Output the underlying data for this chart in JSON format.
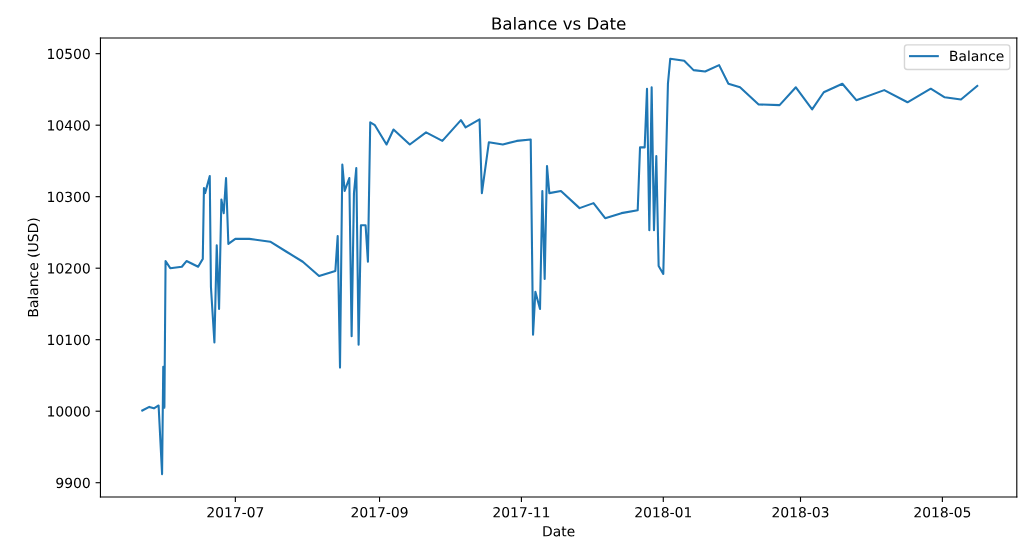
{
  "chart_data": {
    "type": "line",
    "title": "Balance vs Date",
    "xlabel": "Date",
    "ylabel": "Balance (USD)",
    "x": [
      "2017-05-22",
      "2017-05-25",
      "2017-05-27",
      "2017-05-29",
      "2017-05-30T12:00",
      "2017-05-31T00:00",
      "2017-05-31T12:00",
      "2017-06-01",
      "2017-06-03",
      "2017-06-08",
      "2017-06-10",
      "2017-06-15",
      "2017-06-17",
      "2017-06-17T12:00",
      "2017-06-18",
      "2017-06-20",
      "2017-06-20T12:00",
      "2017-06-22",
      "2017-06-23",
      "2017-06-24",
      "2017-06-25",
      "2017-06-26",
      "2017-06-27",
      "2017-06-28",
      "2017-07-01",
      "2017-07-07",
      "2017-07-16",
      "2017-07-23",
      "2017-07-30",
      "2017-08-06",
      "2017-08-13",
      "2017-08-14",
      "2017-08-15",
      "2017-08-16",
      "2017-08-17",
      "2017-08-19",
      "2017-08-20",
      "2017-08-21",
      "2017-08-22",
      "2017-08-23",
      "2017-08-24",
      "2017-08-26",
      "2017-08-27",
      "2017-08-28",
      "2017-08-30",
      "2017-09-04",
      "2017-09-07",
      "2017-09-14",
      "2017-09-21",
      "2017-09-28",
      "2017-10-06",
      "2017-10-08",
      "2017-10-14",
      "2017-10-15",
      "2017-10-18",
      "2017-10-24",
      "2017-10-30",
      "2017-11-05",
      "2017-11-06",
      "2017-11-07",
      "2017-11-09",
      "2017-11-10",
      "2017-11-11",
      "2017-11-12",
      "2017-11-13",
      "2017-11-18",
      "2017-11-26",
      "2017-12-02",
      "2017-12-07",
      "2017-12-14",
      "2017-12-21",
      "2017-12-22",
      "2017-12-24",
      "2017-12-25",
      "2017-12-26",
      "2017-12-27",
      "2017-12-28",
      "2017-12-29",
      "2017-12-30",
      "2018-01-01",
      "2018-01-02",
      "2018-01-03",
      "2018-01-04",
      "2018-01-10",
      "2018-01-14",
      "2018-01-19",
      "2018-01-25",
      "2018-01-29",
      "2018-02-03",
      "2018-02-11",
      "2018-02-20",
      "2018-02-27",
      "2018-03-06",
      "2018-03-11",
      "2018-03-19",
      "2018-03-25",
      "2018-04-06",
      "2018-04-16",
      "2018-04-26",
      "2018-05-02",
      "2018-05-09",
      "2018-05-16"
    ],
    "series": [
      {
        "name": "Balance",
        "color": "#1f77b4",
        "values": [
          10001,
          10006,
          10004,
          10008,
          9912,
          10062,
          10005,
          10210,
          10200,
          10202,
          10210,
          10202,
          10213,
          10312,
          10305,
          10329,
          10174,
          10096,
          10232,
          10143,
          10296,
          10277,
          10326,
          10234,
          10241,
          10241,
          10237,
          10223,
          10209,
          10189,
          10196,
          10245,
          10061,
          10345,
          10308,
          10326,
          10105,
          10305,
          10340,
          10093,
          10260,
          10260,
          10209,
          10404,
          10400,
          10373,
          10394,
          10373,
          10390,
          10378,
          10407,
          10397,
          10408,
          10305,
          10376,
          10373,
          10378,
          10380,
          10107,
          10167,
          10143,
          10308,
          10185,
          10343,
          10305,
          10308,
          10284,
          10291,
          10270,
          10277,
          10281,
          10369,
          10369,
          10451,
          10253,
          10453,
          10253,
          10357,
          10203,
          10192,
          10326,
          10458,
          10493,
          10490,
          10477,
          10475,
          10484,
          10458,
          10453,
          10429,
          10428,
          10453,
          10422,
          10446,
          10458,
          10435,
          10449,
          10432,
          10451,
          10439,
          10436,
          10455
        ]
      }
    ],
    "xlim": [
      "2017-05-04",
      "2018-06-02"
    ],
    "xticks": [
      {
        "value": "2017-07-01",
        "label": "2017-07"
      },
      {
        "value": "2017-09-01",
        "label": "2017-09"
      },
      {
        "value": "2017-11-01",
        "label": "2017-11"
      },
      {
        "value": "2018-01-01",
        "label": "2018-01"
      },
      {
        "value": "2018-03-01",
        "label": "2018-03"
      },
      {
        "value": "2018-05-01",
        "label": "2018-05"
      }
    ],
    "ylim": [
      9880,
      10522
    ],
    "yticks": [
      9900,
      10000,
      10100,
      10200,
      10300,
      10400,
      10500
    ],
    "grid": false,
    "legend": "top right",
    "marker": "none",
    "line_style": "solid"
  }
}
